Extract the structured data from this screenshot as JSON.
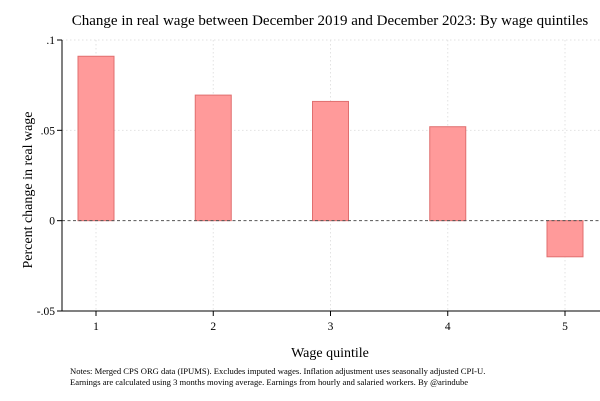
{
  "chart_data": {
    "type": "bar",
    "title": "Change in real wage between December 2019 and December 2023: By wage quintiles",
    "xlabel": "Wage quintile",
    "ylabel": "Percent change in real wage",
    "categories": [
      "1",
      "2",
      "3",
      "4",
      "5"
    ],
    "values": [
      0.091,
      0.0695,
      0.066,
      0.052,
      -0.02
    ],
    "ylim": [
      -0.05,
      0.1
    ],
    "yticks": [
      {
        "value": -0.05,
        "label": "-.05"
      },
      {
        "value": 0,
        "label": "0"
      },
      {
        "value": 0.05,
        "label": ".05"
      },
      {
        "value": 0.1,
        "label": ".1"
      }
    ],
    "grid": true,
    "reference_line": 0,
    "colors": {
      "bar_fill": "#ff9a9a",
      "bar_stroke": "#e06f6f",
      "grid": "#e2e2e2",
      "zero_line": "#555555",
      "axis": "#000000"
    }
  },
  "notes": {
    "line1": "Notes: Merged CPS ORG data (IPUMS). Excludes imputed wages. Inflation adjustment uses seasonally adjusted CPI-U.",
    "line2": "Earnings are calculated using 3 months moving average. Earnings from hourly and salaried workers. By @arindube"
  }
}
